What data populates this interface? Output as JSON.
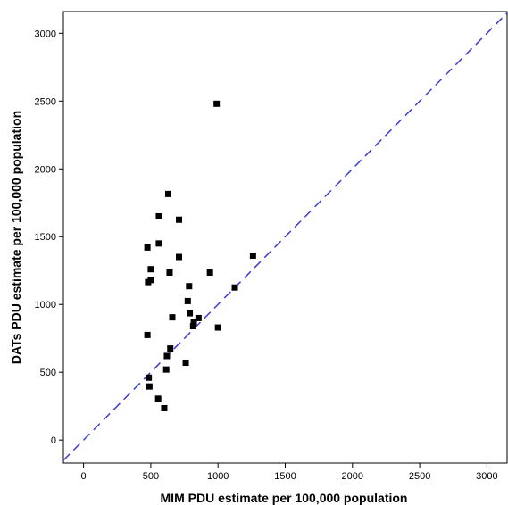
{
  "chart_data": {
    "type": "scatter",
    "title": "",
    "xlabel": "MIM  PDU estimate per 100,000 population",
    "ylabel": "DATs PDU estimate per 100,000 population",
    "xlim": [
      -150,
      3150
    ],
    "ylim": [
      -170,
      3160
    ],
    "xticks": [
      0,
      500,
      1000,
      1500,
      2000,
      2500,
      3000
    ],
    "yticks": [
      0,
      500,
      1000,
      1500,
      2000,
      2500,
      3000
    ],
    "grid": false,
    "legend": "none",
    "reference_line": {
      "type": "identity",
      "style": "dashed",
      "color": "#3c3cd0"
    },
    "marker_color": "#000000",
    "points": [
      {
        "x": 990,
        "y": 2480
      },
      {
        "x": 630,
        "y": 1815
      },
      {
        "x": 560,
        "y": 1650
      },
      {
        "x": 710,
        "y": 1625
      },
      {
        "x": 560,
        "y": 1450
      },
      {
        "x": 475,
        "y": 1420
      },
      {
        "x": 710,
        "y": 1350
      },
      {
        "x": 1260,
        "y": 1360
      },
      {
        "x": 500,
        "y": 1260
      },
      {
        "x": 640,
        "y": 1235
      },
      {
        "x": 940,
        "y": 1235
      },
      {
        "x": 500,
        "y": 1180
      },
      {
        "x": 480,
        "y": 1165
      },
      {
        "x": 785,
        "y": 1135
      },
      {
        "x": 1125,
        "y": 1125
      },
      {
        "x": 775,
        "y": 1025
      },
      {
        "x": 790,
        "y": 935
      },
      {
        "x": 660,
        "y": 905
      },
      {
        "x": 855,
        "y": 900
      },
      {
        "x": 820,
        "y": 870
      },
      {
        "x": 815,
        "y": 840
      },
      {
        "x": 1000,
        "y": 830
      },
      {
        "x": 475,
        "y": 775
      },
      {
        "x": 645,
        "y": 675
      },
      {
        "x": 620,
        "y": 620
      },
      {
        "x": 760,
        "y": 570
      },
      {
        "x": 615,
        "y": 520
      },
      {
        "x": 485,
        "y": 460
      },
      {
        "x": 490,
        "y": 395
      },
      {
        "x": 555,
        "y": 305
      },
      {
        "x": 600,
        "y": 235
      }
    ]
  }
}
